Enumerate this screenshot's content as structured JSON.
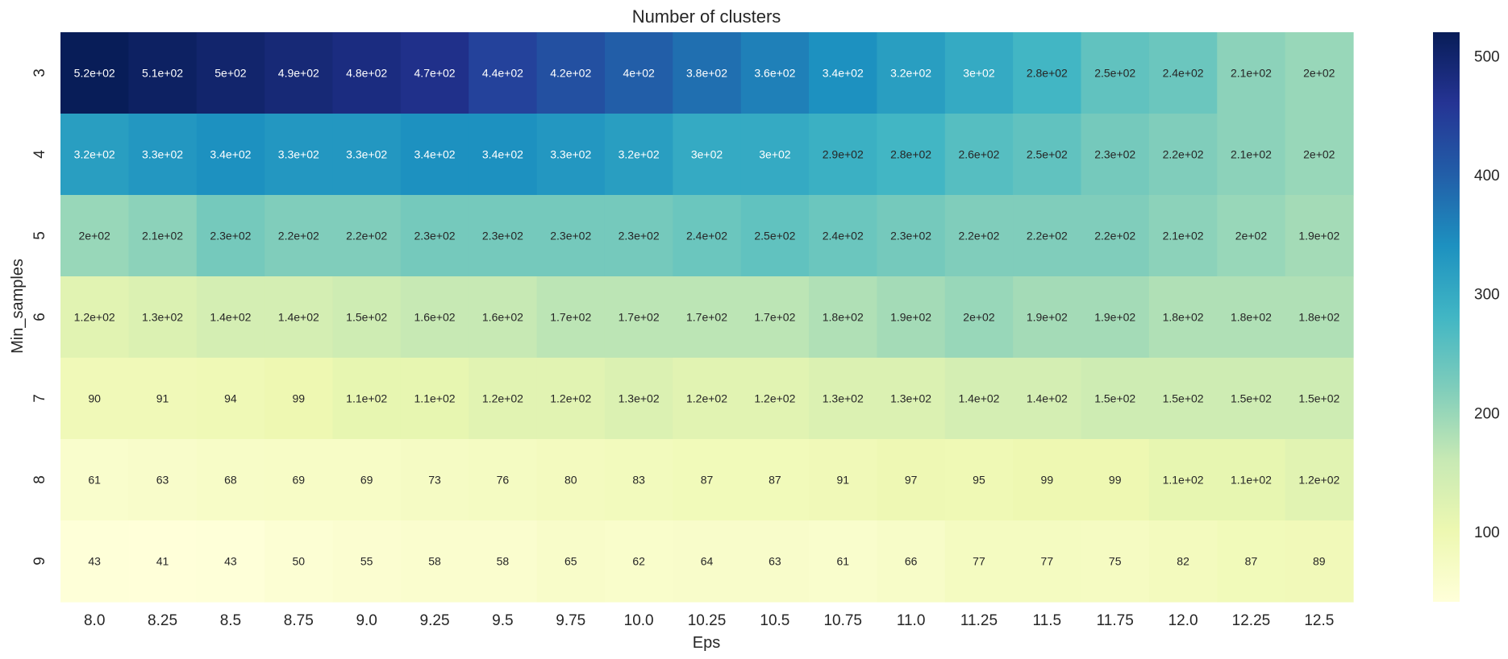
{
  "chart_data": {
    "type": "heatmap",
    "title": "Number of clusters",
    "xlabel": "Eps",
    "ylabel": "Min_samples",
    "x_labels": [
      "8.0",
      "8.25",
      "8.5",
      "8.75",
      "9.0",
      "9.25",
      "9.5",
      "9.75",
      "10.0",
      "10.25",
      "10.5",
      "10.75",
      "11.0",
      "11.25",
      "11.5",
      "11.75",
      "12.0",
      "12.25",
      "12.5"
    ],
    "y_labels": [
      "3",
      "4",
      "5",
      "6",
      "7",
      "8",
      "9"
    ],
    "values": [
      [
        520,
        510,
        500,
        490,
        480,
        470,
        440,
        420,
        400,
        380,
        360,
        340,
        320,
        300,
        280,
        250,
        240,
        210,
        200
      ],
      [
        320,
        330,
        340,
        330,
        330,
        340,
        340,
        330,
        320,
        300,
        300,
        290,
        280,
        260,
        250,
        230,
        220,
        210,
        200
      ],
      [
        200,
        210,
        230,
        220,
        220,
        230,
        230,
        230,
        230,
        240,
        250,
        240,
        230,
        220,
        220,
        220,
        210,
        200,
        190
      ],
      [
        120,
        130,
        140,
        140,
        150,
        160,
        160,
        170,
        170,
        170,
        170,
        180,
        190,
        200,
        190,
        190,
        180,
        180,
        180
      ],
      [
        90,
        91,
        94,
        99,
        110,
        110,
        120,
        120,
        130,
        120,
        120,
        130,
        130,
        140,
        140,
        150,
        150,
        150,
        150
      ],
      [
        61,
        63,
        68,
        69,
        69,
        73,
        76,
        80,
        83,
        87,
        87,
        91,
        97,
        95,
        99,
        99,
        110,
        110,
        120
      ],
      [
        43,
        41,
        43,
        50,
        55,
        58,
        58,
        65,
        62,
        64,
        63,
        61,
        66,
        77,
        77,
        75,
        82,
        87,
        89
      ]
    ],
    "annotations": [
      [
        "5.2e+02",
        "5.1e+02",
        "5e+02",
        "4.9e+02",
        "4.8e+02",
        "4.7e+02",
        "4.4e+02",
        "4.2e+02",
        "4e+02",
        "3.8e+02",
        "3.6e+02",
        "3.4e+02",
        "3.2e+02",
        "3e+02",
        "2.8e+02",
        "2.5e+02",
        "2.4e+02",
        "2.1e+02",
        "2e+02"
      ],
      [
        "3.2e+02",
        "3.3e+02",
        "3.4e+02",
        "3.3e+02",
        "3.3e+02",
        "3.4e+02",
        "3.4e+02",
        "3.3e+02",
        "3.2e+02",
        "3e+02",
        "3e+02",
        "2.9e+02",
        "2.8e+02",
        "2.6e+02",
        "2.5e+02",
        "2.3e+02",
        "2.2e+02",
        "2.1e+02",
        "2e+02"
      ],
      [
        "2e+02",
        "2.1e+02",
        "2.3e+02",
        "2.2e+02",
        "2.2e+02",
        "2.3e+02",
        "2.3e+02",
        "2.3e+02",
        "2.3e+02",
        "2.4e+02",
        "2.5e+02",
        "2.4e+02",
        "2.3e+02",
        "2.2e+02",
        "2.2e+02",
        "2.2e+02",
        "2.1e+02",
        "2e+02",
        "1.9e+02"
      ],
      [
        "1.2e+02",
        "1.3e+02",
        "1.4e+02",
        "1.4e+02",
        "1.5e+02",
        "1.6e+02",
        "1.6e+02",
        "1.7e+02",
        "1.7e+02",
        "1.7e+02",
        "1.7e+02",
        "1.8e+02",
        "1.9e+02",
        "2e+02",
        "1.9e+02",
        "1.9e+02",
        "1.8e+02",
        "1.8e+02",
        "1.8e+02"
      ],
      [
        "90",
        "91",
        "94",
        "99",
        "1.1e+02",
        "1.1e+02",
        "1.2e+02",
        "1.2e+02",
        "1.3e+02",
        "1.2e+02",
        "1.2e+02",
        "1.3e+02",
        "1.3e+02",
        "1.4e+02",
        "1.4e+02",
        "1.5e+02",
        "1.5e+02",
        "1.5e+02",
        "1.5e+02"
      ],
      [
        "61",
        "63",
        "68",
        "69",
        "69",
        "73",
        "76",
        "80",
        "83",
        "87",
        "87",
        "91",
        "97",
        "95",
        "99",
        "99",
        "1.1e+02",
        "1.1e+02",
        "1.2e+02"
      ],
      [
        "43",
        "41",
        "43",
        "50",
        "55",
        "58",
        "58",
        "65",
        "62",
        "64",
        "63",
        "61",
        "66",
        "77",
        "77",
        "75",
        "82",
        "87",
        "89"
      ]
    ],
    "colorbar": {
      "colormap": "YlGnBu",
      "min": 41,
      "max": 520,
      "ticks": [
        100,
        200,
        300,
        400,
        500
      ],
      "tick_labels": [
        "100",
        "200",
        "300",
        "400",
        "500"
      ]
    },
    "colors": {
      "gradient": [
        "#ffffd9",
        "#edf8b1",
        "#c7e9b4",
        "#7fcdbb",
        "#41b6c4",
        "#1d91c0",
        "#225ea8",
        "#253494",
        "#081d58"
      ]
    }
  }
}
